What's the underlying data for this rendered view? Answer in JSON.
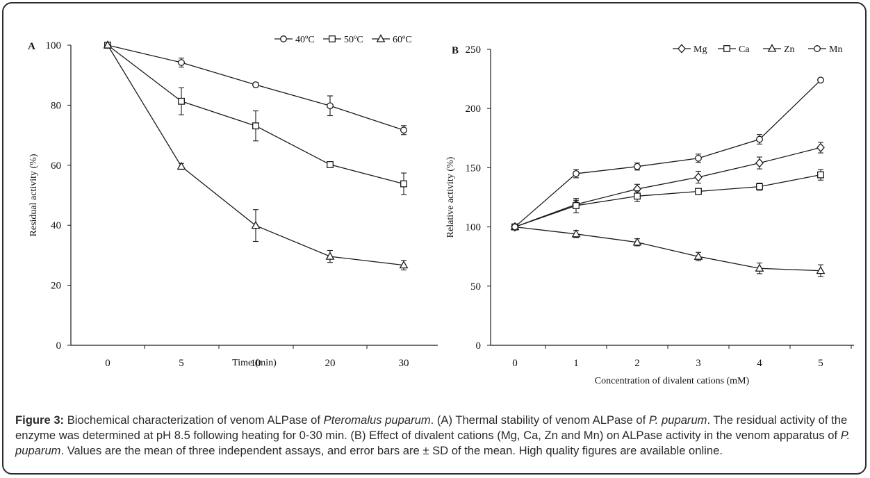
{
  "colors": {
    "line": "#1a1a1a",
    "caption_text": "#2a2a2a",
    "border": "#2b2b2b"
  },
  "chart_data": [
    {
      "panel_label": "A",
      "type": "line",
      "xlabel": "Time (min)",
      "ylabel": "Residual activity (%)",
      "x_axis_scale": "categorical",
      "categories": [
        "0",
        "5",
        "10",
        "20",
        "30"
      ],
      "ylim": [
        0,
        100
      ],
      "yticks": [
        0,
        20,
        40,
        60,
        80,
        100
      ],
      "legend_position": "top-right",
      "series": [
        {
          "name": "40ºC",
          "marker": "circle",
          "values": [
            100,
            94.2,
            86.8,
            79.8,
            71.7
          ],
          "errors": [
            0.5,
            1.5,
            0.7,
            3.3,
            1.5
          ]
        },
        {
          "name": "50ºC",
          "marker": "square",
          "values": [
            100,
            81.3,
            73.1,
            60.2,
            53.8
          ],
          "errors": [
            0.5,
            4.5,
            5.0,
            0.7,
            3.6
          ]
        },
        {
          "name": "60ºC",
          "marker": "triangle",
          "values": [
            100,
            59.6,
            39.9,
            29.6,
            26.7
          ],
          "errors": [
            0.5,
            1.0,
            5.3,
            2.0,
            1.6
          ]
        }
      ]
    },
    {
      "panel_label": "B",
      "type": "line",
      "xlabel": "Concentration of divalent cations (mM)",
      "ylabel": "Relative activity (%)",
      "x_axis_scale": "categorical",
      "categories": [
        "0",
        "1",
        "2",
        "3",
        "4",
        "5"
      ],
      "ylim": [
        0,
        250
      ],
      "yticks": [
        0,
        50,
        100,
        150,
        200,
        250
      ],
      "legend_position": "top-right",
      "series": [
        {
          "name": "Mg",
          "marker": "diamond",
          "values": [
            100,
            119,
            132,
            142,
            154,
            167
          ],
          "errors": [
            1.5,
            3.5,
            4,
            5,
            5,
            4.5
          ]
        },
        {
          "name": "Ca",
          "marker": "square",
          "values": [
            100,
            118,
            126,
            130,
            134,
            144
          ],
          "errors": [
            1.5,
            6,
            4.5,
            2.5,
            3,
            4.5
          ]
        },
        {
          "name": "Zn",
          "marker": "triangle",
          "values": [
            100,
            94,
            87,
            75,
            65,
            63
          ],
          "errors": [
            1.5,
            3,
            3,
            3.5,
            4.5,
            5
          ]
        },
        {
          "name": "Mn",
          "marker": "circle",
          "values": [
            100,
            145,
            151,
            158,
            174,
            224
          ],
          "errors": [
            1.5,
            3.5,
            3,
            3.5,
            4,
            1.5
          ]
        }
      ]
    }
  ],
  "caption": {
    "label": "Figure 3:",
    "t1": " Biochemical characterization of venom ALPase of ",
    "i1": "Pteromalus puparum",
    "t2": ". (A) Thermal stability of venom ALPase of ",
    "i2": "P. puparum",
    "t3": ". The residual activity of the enzyme was determined at pH 8.5 following heating for 0-30 min. (B) Effect of divalent cations (Mg, Ca, Zn and Mn) on ALPase activity in the venom apparatus of ",
    "i3": "P. puparum",
    "t4": ". Values are the mean of three independent assays, and error bars are ± SD of the mean. High quality figures are available online."
  }
}
